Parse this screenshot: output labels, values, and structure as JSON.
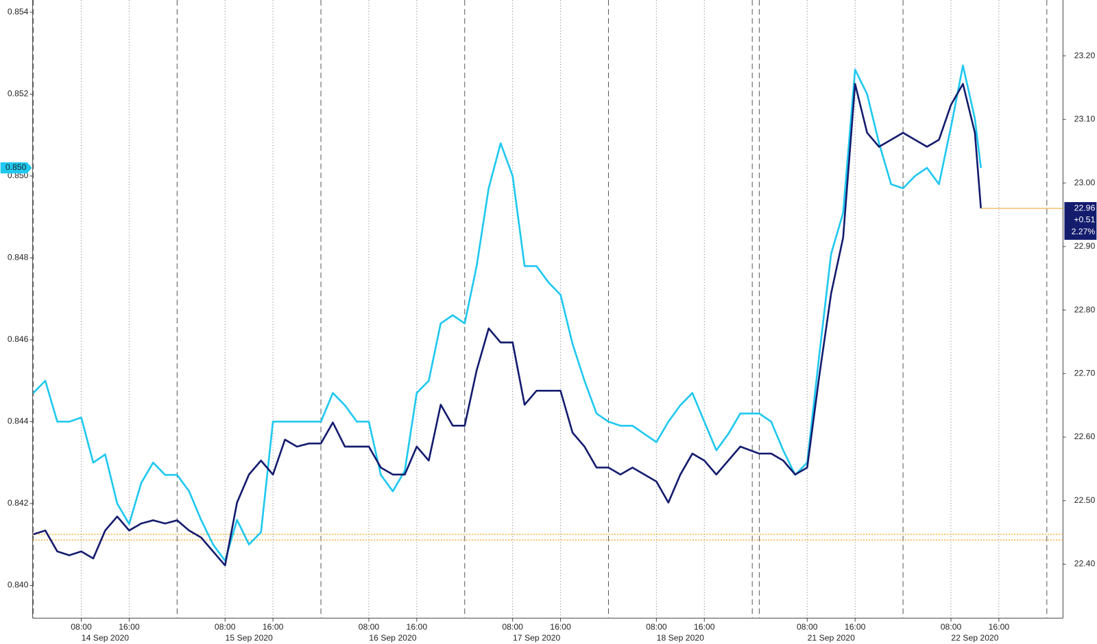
{
  "chart_data": {
    "type": "line",
    "x": [
      "14 Sep 2020 00:00",
      "14 Sep 2020 02:00",
      "14 Sep 2020 04:00",
      "14 Sep 2020 06:00",
      "14 Sep 2020 08:00",
      "14 Sep 2020 10:00",
      "14 Sep 2020 12:00",
      "14 Sep 2020 14:00",
      "14 Sep 2020 16:00",
      "14 Sep 2020 18:00",
      "14 Sep 2020 20:00",
      "14 Sep 2020 22:00",
      "15 Sep 2020 00:00",
      "15 Sep 2020 02:00",
      "15 Sep 2020 04:00",
      "15 Sep 2020 06:00",
      "15 Sep 2020 08:00",
      "15 Sep 2020 10:00",
      "15 Sep 2020 12:00",
      "15 Sep 2020 14:00",
      "15 Sep 2020 16:00",
      "15 Sep 2020 18:00",
      "15 Sep 2020 20:00",
      "15 Sep 2020 22:00",
      "16 Sep 2020 00:00",
      "16 Sep 2020 02:00",
      "16 Sep 2020 04:00",
      "16 Sep 2020 06:00",
      "16 Sep 2020 08:00",
      "16 Sep 2020 10:00",
      "16 Sep 2020 12:00",
      "16 Sep 2020 14:00",
      "16 Sep 2020 16:00",
      "16 Sep 2020 18:00",
      "16 Sep 2020 20:00",
      "16 Sep 2020 22:00",
      "17 Sep 2020 00:00",
      "17 Sep 2020 02:00",
      "17 Sep 2020 04:00",
      "17 Sep 2020 06:00",
      "17 Sep 2020 08:00",
      "17 Sep 2020 10:00",
      "17 Sep 2020 12:00",
      "17 Sep 2020 14:00",
      "17 Sep 2020 16:00",
      "17 Sep 2020 18:00",
      "17 Sep 2020 20:00",
      "17 Sep 2020 22:00",
      "18 Sep 2020 00:00",
      "18 Sep 2020 02:00",
      "18 Sep 2020 04:00",
      "18 Sep 2020 06:00",
      "18 Sep 2020 08:00",
      "18 Sep 2020 10:00",
      "18 Sep 2020 12:00",
      "18 Sep 2020 14:00",
      "18 Sep 2020 16:00",
      "18 Sep 2020 18:00",
      "18 Sep 2020 20:00",
      "18 Sep 2020 22:00",
      "21 Sep 2020 00:00",
      "21 Sep 2020 02:00",
      "21 Sep 2020 04:00",
      "21 Sep 2020 06:00",
      "21 Sep 2020 08:00",
      "21 Sep 2020 10:00",
      "21 Sep 2020 12:00",
      "21 Sep 2020 14:00",
      "21 Sep 2020 16:00",
      "21 Sep 2020 18:00",
      "21 Sep 2020 20:00",
      "21 Sep 2020 22:00",
      "22 Sep 2020 00:00",
      "22 Sep 2020 02:00",
      "22 Sep 2020 04:00",
      "22 Sep 2020 06:00",
      "22 Sep 2020 08:00",
      "22 Sep 2020 10:00",
      "22 Sep 2020 12:00",
      "22 Sep 2020 13:00"
    ],
    "series": [
      {
        "color": "#1ec8f0",
        "axis": "y",
        "values": [
          0.8447,
          0.845,
          0.844,
          0.844,
          0.8441,
          0.843,
          0.8432,
          0.842,
          0.8415,
          0.8425,
          0.843,
          0.8427,
          0.8427,
          0.8423,
          0.8416,
          0.841,
          0.8406,
          0.8416,
          0.841,
          0.8413,
          0.844,
          0.844,
          0.844,
          0.844,
          0.844,
          0.8447,
          0.8444,
          0.844,
          0.844,
          0.8427,
          0.8423,
          0.8428,
          0.8447,
          0.845,
          0.8464,
          0.8466,
          0.8464,
          0.8478,
          0.8497,
          0.8508,
          0.85,
          0.8478,
          0.8478,
          0.8474,
          0.8471,
          0.8459,
          0.845,
          0.8442,
          0.844,
          0.8439,
          0.8439,
          0.8437,
          0.8435,
          0.844,
          0.8444,
          0.8447,
          0.844,
          0.8433,
          0.8437,
          0.8442,
          0.8442,
          0.844,
          0.8433,
          0.8427,
          0.843,
          0.8456,
          0.8481,
          0.8491,
          0.8526,
          0.852,
          0.8508,
          0.8498,
          0.8497,
          0.85,
          0.8502,
          0.8498,
          0.8512,
          0.8527,
          0.8514,
          0.8502
        ],
        "last_value_label": "0.850"
      },
      {
        "color": "#141c6e",
        "axis": "y2",
        "values": [
          22.447,
          22.453,
          22.42,
          22.414,
          22.42,
          22.409,
          22.453,
          22.475,
          22.453,
          22.464,
          22.469,
          22.464,
          22.469,
          22.453,
          22.442,
          22.42,
          22.398,
          22.497,
          22.541,
          22.563,
          22.541,
          22.596,
          22.585,
          22.59,
          22.59,
          22.623,
          22.585,
          22.585,
          22.585,
          22.552,
          22.541,
          22.541,
          22.585,
          22.563,
          22.651,
          22.618,
          22.618,
          22.705,
          22.771,
          22.749,
          22.749,
          22.651,
          22.673,
          22.673,
          22.673,
          22.607,
          22.585,
          22.552,
          22.552,
          22.541,
          22.552,
          22.541,
          22.53,
          22.497,
          22.541,
          22.574,
          22.563,
          22.541,
          22.563,
          22.585,
          22.574,
          22.574,
          22.563,
          22.541,
          22.552,
          22.695,
          22.826,
          22.914,
          23.156,
          23.079,
          23.057,
          23.068,
          23.079,
          23.068,
          23.057,
          23.068,
          23.123,
          23.156,
          23.079,
          22.96
        ],
        "last_value_label": "22.96",
        "change_label": "+0.51",
        "change_pct_label": "2.27%"
      }
    ],
    "ylim": [
      0.8392,
      0.8543
    ],
    "yticks": [
      {
        "value": 0.84,
        "label": "0.840"
      },
      0.842,
      0.844,
      0.846,
      0.848,
      {
        "value": 0.85,
        "label": "0.850"
      },
      0.852,
      0.854
    ],
    "y2lim": [
      22.315,
      23.288
    ],
    "y2ticks": [
      {
        "value": 22.4,
        "label": "22.40"
      },
      {
        "value": 22.5,
        "label": "22.50"
      },
      {
        "value": 22.6,
        "label": "22.60"
      },
      {
        "value": 22.7,
        "label": "22.70"
      },
      {
        "value": 22.8,
        "label": "22.80"
      },
      {
        "value": 22.9,
        "label": "22.90"
      },
      {
        "value": 23.0,
        "label": "23.00"
      },
      {
        "value": 23.1,
        "label": "23.10"
      },
      {
        "value": 23.2,
        "label": "23.20"
      }
    ],
    "xticks": [
      {
        "value": "14 Sep 2020 08:00",
        "label": "08:00"
      },
      {
        "value": "14 Sep 2020 16:00",
        "label": "16:00"
      },
      {
        "value": "15 Sep 2020 08:00",
        "label": "08:00"
      },
      {
        "value": "15 Sep 2020 16:00",
        "label": "16:00"
      },
      {
        "value": "16 Sep 2020 08:00",
        "label": "08:00"
      },
      {
        "value": "16 Sep 2020 16:00",
        "label": "16:00"
      },
      {
        "value": "17 Sep 2020 08:00",
        "label": "08:00"
      },
      {
        "value": "17 Sep 2020 16:00",
        "label": "16:00"
      },
      {
        "value": "18 Sep 2020 08:00",
        "label": "08:00"
      },
      {
        "value": "18 Sep 2020 16:00",
        "label": "16:00"
      },
      {
        "value": "21 Sep 2020 08:00",
        "label": "08:00"
      },
      {
        "value": "21 Sep 2020 16:00",
        "label": "16:00"
      },
      {
        "value": "22 Sep 2020 08:00",
        "label": "08:00"
      },
      {
        "value": "22 Sep 2020 16:00",
        "label": "16:00"
      }
    ],
    "date_labels": [
      {
        "value": "14 Sep 2020 12:00",
        "label": "14 Sep 2020"
      },
      {
        "value": "15 Sep 2020 12:00",
        "label": "15 Sep 2020"
      },
      {
        "value": "16 Sep 2020 12:00",
        "label": "16 Sep 2020"
      },
      {
        "value": "17 Sep 2020 12:00",
        "label": "17 Sep 2020"
      },
      {
        "value": "18 Sep 2020 12:00",
        "label": "18 Sep 2020"
      },
      {
        "value": "21 Sep 2020 12:00",
        "label": "21 Sep 2020"
      },
      {
        "value": "22 Sep 2020 12:00",
        "label": "22 Sep 2020"
      }
    ],
    "reference_lines": [
      {
        "axis": "y2",
        "value": 22.447,
        "color": "#f0a020"
      },
      {
        "axis": "y2",
        "value": 22.438,
        "color": "#f0a020"
      }
    ]
  }
}
